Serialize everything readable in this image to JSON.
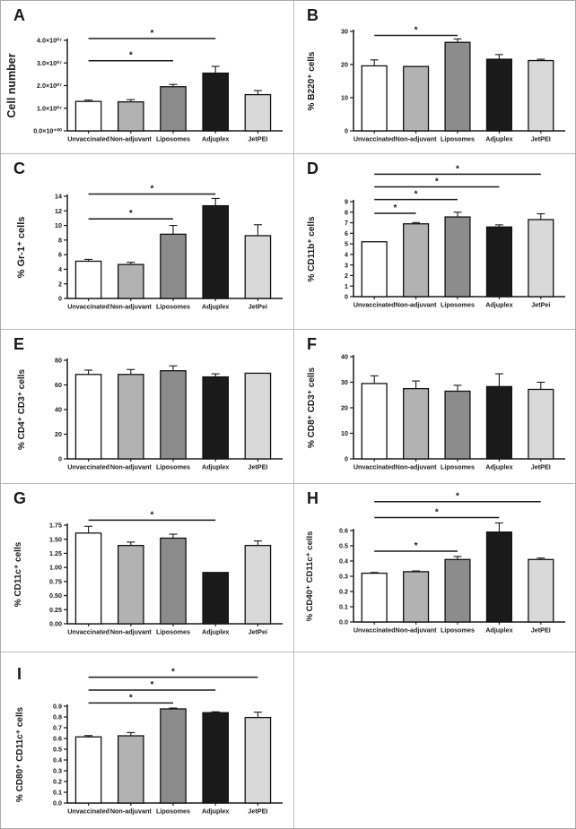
{
  "figure": {
    "background": "#ffffff",
    "grid_line_color": "#bcbcbc",
    "axis_color": "#1a1a1a",
    "bar_fill_colors": [
      "#ffffff",
      "#b2b2b2",
      "#8c8c8c",
      "#1a1a1a",
      "#d9d9d9"
    ],
    "significance_marker": "*"
  },
  "chart_data": [
    {
      "type": "bar",
      "panel": "A",
      "ylabel": "Cell number",
      "categories": [
        "Unvaccinated",
        "Non-adjuvant",
        "Liposomes",
        "Adjuplex",
        "JetPEI"
      ],
      "values": [
        1.3,
        1.28,
        1.95,
        2.55,
        1.6
      ],
      "errors": [
        0.06,
        0.1,
        0.1,
        0.3,
        0.18
      ],
      "ylim": [
        0,
        4
      ],
      "ytick_values": [
        0,
        1,
        2,
        3,
        4
      ],
      "ytick_labels": [
        "0.0×10⁺⁰⁰",
        "1.0×10⁰⁷",
        "2.0×10⁰⁷",
        "3.0×10⁰⁷",
        "4.0×10⁰⁷"
      ],
      "significance": [
        {
          "from": 0,
          "to": 2,
          "y": 3.1,
          "label": "*"
        },
        {
          "from": 0,
          "to": 3,
          "y": 4.08,
          "label": "*"
        }
      ]
    },
    {
      "type": "bar",
      "panel": "B",
      "ylabel": "% B220⁺ cells",
      "categories": [
        "Unvaccinated",
        "Non-adjuvant",
        "Liposomes",
        "Adjuplex",
        "JetPEI"
      ],
      "values": [
        19.6,
        19.4,
        26.7,
        21.6,
        21.2
      ],
      "errors": [
        1.8,
        0,
        1.0,
        1.4,
        0.4
      ],
      "ylim": [
        0,
        30
      ],
      "ytick_values": [
        0,
        10,
        20,
        30
      ],
      "ytick_labels": [
        "0",
        "10",
        "20",
        "30"
      ],
      "significance": [
        {
          "from": 0,
          "to": 2,
          "y": 28.8,
          "label": "*"
        }
      ]
    },
    {
      "type": "bar",
      "panel": "C",
      "ylabel": "% Gr-1⁺ cells",
      "categories": [
        "Unvaccinated",
        "Non-adjuvant",
        "Liposomes",
        "Adjuplex",
        "JetPei"
      ],
      "values": [
        5.1,
        4.65,
        8.8,
        12.7,
        8.6
      ],
      "errors": [
        0.25,
        0.3,
        1.2,
        1.0,
        1.5
      ],
      "ylim": [
        0,
        14
      ],
      "ytick_values": [
        0,
        2,
        4,
        6,
        8,
        10,
        12,
        14
      ],
      "ytick_labels": [
        "0",
        "2",
        "4",
        "6",
        "8",
        "10",
        "12",
        "14"
      ],
      "significance": [
        {
          "from": 0,
          "to": 2,
          "y": 10.9,
          "label": "*"
        },
        {
          "from": 0,
          "to": 3,
          "y": 14.3,
          "label": "*"
        }
      ]
    },
    {
      "type": "bar",
      "panel": "D",
      "ylabel": "% CD11b⁺ cells",
      "categories": [
        "Unvaccinated",
        "Non-adjuvant",
        "Liposomes",
        "Adjuplex",
        "JetPei"
      ],
      "values": [
        5.2,
        6.9,
        7.55,
        6.6,
        7.3
      ],
      "errors": [
        0.06,
        0.12,
        0.45,
        0.2,
        0.55
      ],
      "ylim": [
        0,
        9
      ],
      "ytick_values": [
        0,
        1,
        2,
        3,
        4,
        5,
        6,
        7,
        8,
        9
      ],
      "ytick_labels": [
        "0",
        "1",
        "2",
        "3",
        "4",
        "5",
        "6",
        "7",
        "8",
        "9"
      ],
      "significance": [
        {
          "from": 0,
          "to": 1,
          "y": 7.9,
          "label": "*"
        },
        {
          "from": 0,
          "to": 2,
          "y": 9.2,
          "label": "*"
        },
        {
          "from": 0,
          "to": 3,
          "y": 10.4,
          "label": "*"
        },
        {
          "from": 0,
          "to": 4,
          "y": 11.6,
          "label": "*"
        }
      ]
    },
    {
      "type": "bar",
      "panel": "E",
      "ylabel": "% CD4⁺ CD3⁺ cells",
      "categories": [
        "Unvaccinated",
        "Non-adjuvant",
        "Liposomes",
        "Adjuplex",
        "JetPEI"
      ],
      "values": [
        68.5,
        68.5,
        71.5,
        66.5,
        69.5
      ],
      "errors": [
        3.5,
        4.0,
        4.0,
        2.5,
        0.5
      ],
      "ylim": [
        0,
        80
      ],
      "ytick_values": [
        0,
        20,
        40,
        60,
        80
      ],
      "ytick_labels": [
        "0",
        "20",
        "40",
        "60",
        "80"
      ],
      "significance": []
    },
    {
      "type": "bar",
      "panel": "F",
      "ylabel": "% CD8⁺ CD3⁺ cells",
      "categories": [
        "Unvaccinated",
        "Non-adjuvant",
        "Liposomes",
        "Adjuplex",
        "JetPEI"
      ],
      "values": [
        29.5,
        27.5,
        26.5,
        28.3,
        27.2
      ],
      "errors": [
        3.0,
        3.0,
        2.3,
        5.0,
        2.8
      ],
      "ylim": [
        0,
        40
      ],
      "ytick_values": [
        0,
        10,
        20,
        30,
        40
      ],
      "ytick_labels": [
        "0",
        "10",
        "20",
        "30",
        "40"
      ],
      "significance": []
    },
    {
      "type": "bar",
      "panel": "G",
      "ylabel": "% CD11c⁺ cells",
      "categories": [
        "Unvaccinated",
        "Non-adjuvant",
        "Liposomes",
        "Adjuplex",
        "JetPei"
      ],
      "values": [
        1.61,
        1.39,
        1.52,
        0.91,
        1.39
      ],
      "errors": [
        0.12,
        0.06,
        0.07,
        0.01,
        0.08
      ],
      "ylim": [
        0,
        1.75
      ],
      "ytick_values": [
        0,
        0.25,
        0.5,
        0.75,
        1.0,
        1.25,
        1.5,
        1.75
      ],
      "ytick_labels": [
        "0.00",
        "0.25",
        "0.50",
        "0.75",
        "1.00",
        "1.25",
        "1.50",
        "1.75"
      ],
      "significance": [
        {
          "from": 0,
          "to": 3,
          "y": 1.84,
          "label": "*"
        }
      ]
    },
    {
      "type": "bar",
      "panel": "H",
      "ylabel": "% CD40⁺ CD11c⁺ cells",
      "categories": [
        "Unvaccinated",
        "Non-adjuvant",
        "Liposomes",
        "Adjuplex",
        "JetPEI"
      ],
      "values": [
        0.32,
        0.33,
        0.41,
        0.59,
        0.41
      ],
      "errors": [
        0.005,
        0.005,
        0.02,
        0.06,
        0.01
      ],
      "ylim": [
        0,
        0.6
      ],
      "ytick_values": [
        0,
        0.1,
        0.2,
        0.3,
        0.4,
        0.5,
        0.6
      ],
      "ytick_labels": [
        "0.0",
        "0.1",
        "0.2",
        "0.3",
        "0.4",
        "0.5",
        "0.6"
      ],
      "significance": [
        {
          "from": 0,
          "to": 2,
          "y": 0.465,
          "label": "*"
        },
        {
          "from": 0,
          "to": 3,
          "y": 0.685,
          "label": "*"
        },
        {
          "from": 0,
          "to": 4,
          "y": 0.79,
          "label": "*"
        }
      ]
    },
    {
      "type": "bar",
      "panel": "I",
      "ylabel": "% CD80⁺ CD11c⁺ cells",
      "categories": [
        "Unvaccinated",
        "Non-adjuvant",
        "Liposomes",
        "Adjuplex",
        "JetPEI"
      ],
      "values": [
        0.615,
        0.625,
        0.875,
        0.84,
        0.795
      ],
      "errors": [
        0.012,
        0.03,
        0.008,
        0.008,
        0.05
      ],
      "ylim": [
        0,
        0.9
      ],
      "ytick_values": [
        0,
        0.1,
        0.2,
        0.3,
        0.4,
        0.5,
        0.6,
        0.7,
        0.8,
        0.9
      ],
      "ytick_labels": [
        "0.0",
        "0.1",
        "0.2",
        "0.3",
        "0.4",
        "0.5",
        "0.6",
        "0.7",
        "0.8",
        "0.9"
      ],
      "significance": [
        {
          "from": 0,
          "to": 2,
          "y": 0.93,
          "label": "*"
        },
        {
          "from": 0,
          "to": 3,
          "y": 1.05,
          "label": "*"
        },
        {
          "from": 0,
          "to": 4,
          "y": 1.17,
          "label": "*"
        }
      ]
    }
  ]
}
